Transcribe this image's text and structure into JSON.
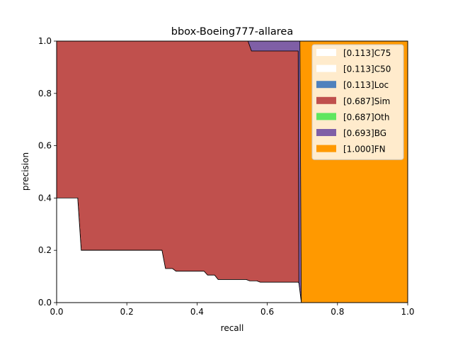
{
  "chart_data": {
    "type": "area",
    "title": "bbox-Boeing777-allarea",
    "xlabel": "recall",
    "ylabel": "precision",
    "xlim": [
      0,
      1
    ],
    "ylim": [
      0,
      1
    ],
    "x_ticks": [
      "0.0",
      "0.2",
      "0.4",
      "0.6",
      "0.8",
      "1.0"
    ],
    "y_ticks": [
      "0.0",
      "0.2",
      "0.4",
      "0.6",
      "0.8",
      "1.0"
    ],
    "grid": false,
    "legend_position": "top-right",
    "series": [
      {
        "name": "[1.000]FN",
        "color": "#ff9900",
        "points": [
          [
            0,
            1
          ],
          [
            1,
            1
          ]
        ]
      },
      {
        "name": "[0.693]BG",
        "color": "#7f5fa6",
        "points": [
          [
            0,
            1
          ],
          [
            0.545,
            1
          ],
          [
            0.55,
            1
          ],
          [
            0.688,
            1
          ],
          [
            0.69,
            1
          ],
          [
            0.693,
            1
          ],
          [
            0.697,
            0
          ]
        ]
      },
      {
        "name": "[0.687]Oth",
        "color": "#5fe65f",
        "points": [
          [
            0,
            1
          ],
          [
            0.545,
            1
          ],
          [
            0.555,
            0.962
          ],
          [
            0.688,
            0.962
          ],
          [
            0.69,
            0
          ]
        ]
      },
      {
        "name": "[0.687]Sim",
        "color": "#c0504d",
        "points": [
          [
            0,
            1
          ],
          [
            0.545,
            1
          ],
          [
            0.555,
            0.962
          ],
          [
            0.688,
            0.962
          ],
          [
            0.69,
            0
          ]
        ]
      },
      {
        "name": "[0.113]Loc",
        "color": "#4f81bd",
        "points": [
          [
            0,
            0.4
          ],
          [
            0.06,
            0.4
          ],
          [
            0.07,
            0.2
          ],
          [
            0.3,
            0.2
          ],
          [
            0.31,
            0.13
          ],
          [
            0.33,
            0.13
          ],
          [
            0.34,
            0.12
          ],
          [
            0.42,
            0.12
          ],
          [
            0.43,
            0.105
          ],
          [
            0.45,
            0.105
          ],
          [
            0.46,
            0.088
          ],
          [
            0.54,
            0.088
          ],
          [
            0.55,
            0.083
          ],
          [
            0.57,
            0.083
          ],
          [
            0.58,
            0.078
          ],
          [
            0.688,
            0.078
          ],
          [
            0.69,
            0.075
          ],
          [
            0.697,
            0
          ]
        ]
      },
      {
        "name": "[0.113]C50",
        "color": "#ffffff",
        "points": [
          [
            0,
            0.4
          ],
          [
            0.06,
            0.4
          ],
          [
            0.07,
            0.2
          ],
          [
            0.3,
            0.2
          ],
          [
            0.31,
            0.13
          ],
          [
            0.33,
            0.13
          ],
          [
            0.34,
            0.12
          ],
          [
            0.42,
            0.12
          ],
          [
            0.43,
            0.105
          ],
          [
            0.45,
            0.105
          ],
          [
            0.46,
            0.088
          ],
          [
            0.54,
            0.088
          ],
          [
            0.55,
            0.083
          ],
          [
            0.57,
            0.083
          ],
          [
            0.58,
            0.078
          ],
          [
            0.688,
            0.078
          ],
          [
            0.69,
            0.075
          ],
          [
            0.697,
            0
          ]
        ]
      },
      {
        "name": "[0.113]C75",
        "color": "#ffffff",
        "points": [
          [
            0,
            0.4
          ],
          [
            0.06,
            0.4
          ],
          [
            0.07,
            0.2
          ],
          [
            0.3,
            0.2
          ],
          [
            0.31,
            0.13
          ],
          [
            0.33,
            0.13
          ],
          [
            0.34,
            0.12
          ],
          [
            0.42,
            0.12
          ],
          [
            0.43,
            0.105
          ],
          [
            0.45,
            0.105
          ],
          [
            0.46,
            0.088
          ],
          [
            0.54,
            0.088
          ],
          [
            0.55,
            0.083
          ],
          [
            0.57,
            0.083
          ],
          [
            0.58,
            0.078
          ],
          [
            0.688,
            0.078
          ],
          [
            0.69,
            0.075
          ],
          [
            0.697,
            0
          ]
        ]
      }
    ],
    "legend": [
      {
        "label": "[0.113]C75",
        "color": "#ffffff"
      },
      {
        "label": "[0.113]C50",
        "color": "#ffffff"
      },
      {
        "label": "[0.113]Loc",
        "color": "#4f81bd"
      },
      {
        "label": "[0.687]Sim",
        "color": "#c0504d"
      },
      {
        "label": "[0.687]Oth",
        "color": "#5fe65f"
      },
      {
        "label": "[0.693]BG",
        "color": "#7f5fa6"
      },
      {
        "label": "[1.000]FN",
        "color": "#ff9900"
      }
    ]
  }
}
